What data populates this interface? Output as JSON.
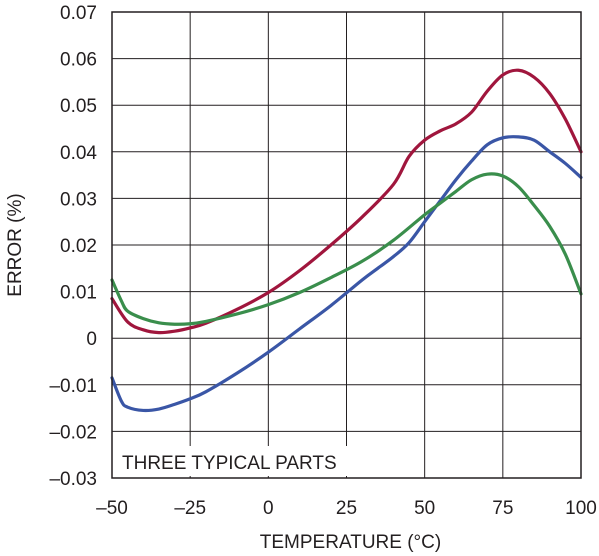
{
  "chart_data": {
    "type": "line",
    "title": "",
    "xlabel": "TEMPERATURE (°C)",
    "ylabel": "ERROR (%)",
    "xlim": [
      -50,
      100
    ],
    "ylim": [
      -0.03,
      0.07
    ],
    "x_ticks": [
      -50,
      -25,
      0,
      25,
      50,
      75,
      100
    ],
    "x_tick_labels": [
      "–50",
      "–25",
      "0",
      "25",
      "50",
      "75",
      "100"
    ],
    "y_ticks": [
      0.07,
      0.06,
      0.05,
      0.04,
      0.03,
      0.02,
      0.01,
      0,
      -0.01,
      -0.02,
      -0.03
    ],
    "y_tick_labels": [
      "0.07",
      "0.06",
      "0.05",
      "0.04",
      "0.03",
      "0.02",
      "0.01",
      "0",
      "–0.01",
      "–0.02",
      "–0.03"
    ],
    "grid": true,
    "annotation": "THREE TYPICAL PARTS",
    "series": [
      {
        "color": "#a0163d",
        "x": [
          -50,
          -45,
          -40,
          -35,
          -30,
          -25,
          -20,
          -10,
          0,
          10,
          20,
          30,
          40,
          45,
          50,
          55,
          60,
          65,
          70,
          75,
          80,
          85,
          90,
          95,
          100
        ],
        "y": [
          0.0085,
          0.0035,
          0.0018,
          0.0012,
          0.0015,
          0.0022,
          0.0032,
          0.0062,
          0.0098,
          0.0145,
          0.02,
          0.026,
          0.033,
          0.039,
          0.0425,
          0.0445,
          0.046,
          0.0485,
          0.053,
          0.0565,
          0.0575,
          0.056,
          0.0525,
          0.047,
          0.04
        ]
      },
      {
        "color": "#3a56a6",
        "x": [
          -50,
          -47,
          -45,
          -40,
          -35,
          -30,
          -25,
          -20,
          -10,
          0,
          10,
          20,
          30,
          35,
          40,
          45,
          50,
          55,
          60,
          65,
          70,
          75,
          80,
          85,
          90,
          95,
          100
        ],
        "y": [
          -0.0085,
          -0.0135,
          -0.0148,
          -0.0155,
          -0.0152,
          -0.0142,
          -0.013,
          -0.0115,
          -0.0075,
          -0.003,
          0.002,
          0.007,
          0.0125,
          0.015,
          0.0175,
          0.0205,
          0.025,
          0.0295,
          0.034,
          0.038,
          0.0415,
          0.043,
          0.0432,
          0.0425,
          0.04,
          0.0375,
          0.0345
        ]
      },
      {
        "color": "#3a8e4c",
        "x": [
          -50,
          -47,
          -45,
          -40,
          -35,
          -30,
          -25,
          -20,
          -10,
          0,
          10,
          20,
          30,
          40,
          50,
          55,
          60,
          65,
          70,
          75,
          80,
          85,
          90,
          95,
          100
        ],
        "y": [
          0.0125,
          0.008,
          0.0058,
          0.0042,
          0.0033,
          0.003,
          0.0031,
          0.0036,
          0.0052,
          0.0072,
          0.0098,
          0.013,
          0.0165,
          0.021,
          0.0265,
          0.029,
          0.0315,
          0.034,
          0.0352,
          0.0348,
          0.0325,
          0.0285,
          0.024,
          0.018,
          0.0095
        ]
      }
    ]
  }
}
